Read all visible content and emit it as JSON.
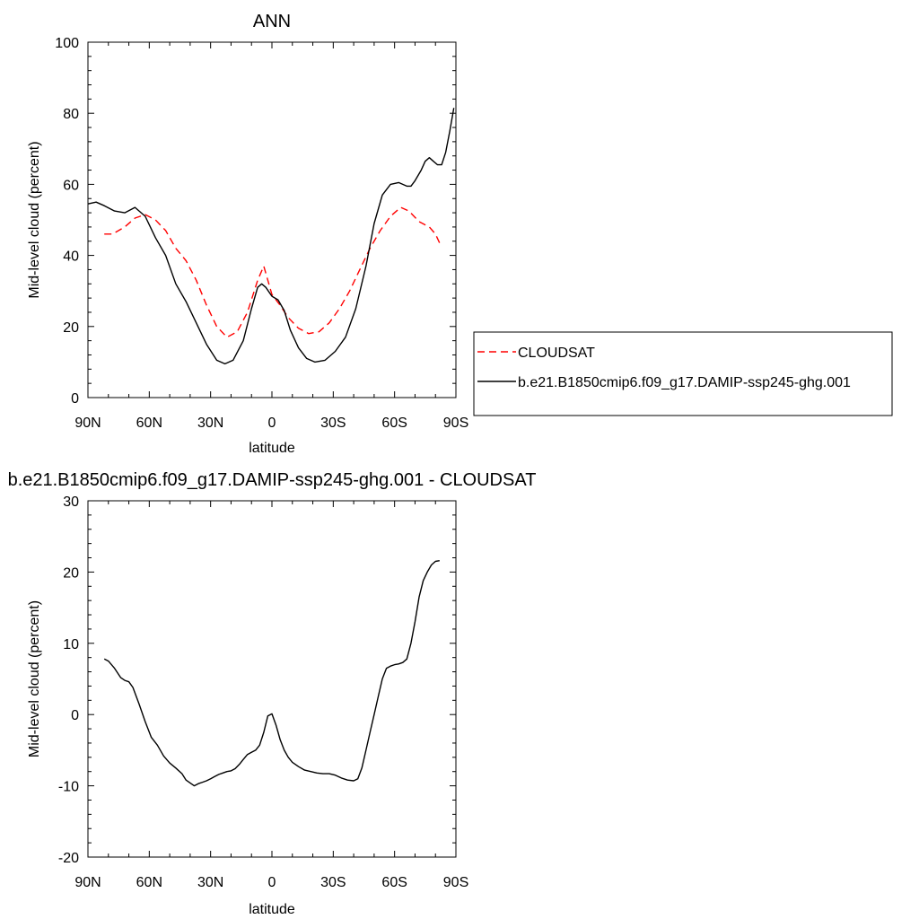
{
  "chart_data": [
    {
      "type": "line",
      "title": "ANN",
      "xlabel": "latitude",
      "ylabel": "Mid-level cloud (percent)",
      "xlim": [
        90,
        -90
      ],
      "ylim": [
        0,
        100
      ],
      "x_tick_values": [
        90,
        60,
        30,
        0,
        -30,
        -60,
        -90
      ],
      "x_tick_labels": [
        "90N",
        "60N",
        "30N",
        "0",
        "30S",
        "60S",
        "90S"
      ],
      "y_tick_values": [
        0,
        20,
        40,
        60,
        80,
        100
      ],
      "y_tick_labels": [
        "0",
        "20",
        "40",
        "60",
        "80",
        "100"
      ],
      "legend": {
        "placement": "right"
      },
      "series": [
        {
          "name": "CLOUDSAT",
          "color": "#ff0000",
          "dash": "dashed",
          "x": [
            82,
            78,
            72,
            67,
            62,
            57,
            52,
            47,
            42,
            37,
            32,
            27,
            22,
            17,
            12,
            7,
            4,
            0,
            -4,
            -8,
            -13,
            -18,
            -23,
            -28,
            -33,
            -38,
            -43,
            -48,
            -53,
            -58,
            -63,
            -67,
            -72,
            -77,
            -80,
            -82
          ],
          "y": [
            46,
            46,
            48,
            50.5,
            51.5,
            50,
            47,
            42,
            38.5,
            33,
            26,
            20,
            17,
            18.5,
            24,
            33,
            37,
            29,
            26,
            22.5,
            19.5,
            18,
            18.5,
            21,
            25,
            30,
            36,
            42,
            47,
            51,
            53.5,
            52.5,
            49.5,
            48,
            46,
            43.5
          ]
        },
        {
          "name": "b.e21.B1850cmip6.f09_g17.DAMIP-ssp245-ghg.001",
          "color": "#000000",
          "dash": "solid",
          "x": [
            90,
            86,
            82,
            77,
            72,
            67,
            62,
            57,
            52,
            47,
            42,
            37,
            32,
            27,
            23,
            19,
            14,
            10,
            7,
            5,
            3,
            0,
            -3,
            -6,
            -9,
            -13,
            -17,
            -21,
            -26,
            -31,
            -36,
            -41,
            -46,
            -50,
            -54,
            -58,
            -62,
            -66,
            -68,
            -70,
            -73,
            -75,
            -77,
            -79,
            -81,
            -83,
            -85,
            -87,
            -89
          ],
          "y": [
            54.5,
            55,
            54,
            52.5,
            52,
            53.5,
            51,
            45,
            40,
            32,
            27,
            21,
            15,
            10.5,
            9.5,
            10.5,
            16,
            25,
            31,
            32,
            31,
            28.5,
            27.5,
            24.5,
            19,
            14,
            11,
            10,
            10.5,
            13,
            17,
            25,
            37,
            49,
            57,
            60,
            60.5,
            59.5,
            59.5,
            61,
            64,
            66.5,
            67.5,
            66.5,
            65.5,
            65.5,
            69,
            75,
            81.5
          ]
        }
      ]
    },
    {
      "type": "line",
      "title": "b.e21.B1850cmip6.f09_g17.DAMIP-ssp245-ghg.001 - CLOUDSAT",
      "xlabel": "latitude",
      "ylabel": "Mid-level cloud (percent)",
      "xlim": [
        90,
        -90
      ],
      "ylim": [
        -20,
        30
      ],
      "x_tick_values": [
        90,
        60,
        30,
        0,
        -30,
        -60,
        -90
      ],
      "x_tick_labels": [
        "90N",
        "60N",
        "30N",
        "0",
        "30S",
        "60S",
        "90S"
      ],
      "y_tick_values": [
        -20,
        -10,
        0,
        10,
        20,
        30
      ],
      "y_tick_labels": [
        "-20",
        "-10",
        "0",
        "10",
        "20",
        "30"
      ],
      "series": [
        {
          "color": "#000000",
          "dash": "solid",
          "x": [
            82,
            80,
            77,
            74,
            72,
            70,
            68,
            65,
            62,
            59,
            56,
            53,
            50,
            47,
            44,
            42,
            40,
            38,
            36,
            34,
            32,
            30,
            28,
            26,
            24,
            22,
            20,
            18,
            16,
            14,
            12,
            10,
            8,
            6,
            4,
            2,
            0,
            -2,
            -4,
            -6,
            -8,
            -10,
            -13,
            -16,
            -19,
            -22,
            -25,
            -28,
            -31,
            -34,
            -37,
            -40,
            -42,
            -44,
            -46,
            -48,
            -50,
            -52,
            -54,
            -56,
            -58,
            -60,
            -62,
            -64,
            -66,
            -68,
            -70,
            -72,
            -74,
            -76,
            -78,
            -80,
            -82
          ],
          "y": [
            7.8,
            7.5,
            6.5,
            5.2,
            4.8,
            4.6,
            3.8,
            1.5,
            -1.0,
            -3.2,
            -4.3,
            -5.8,
            -6.8,
            -7.5,
            -8.3,
            -9.2,
            -9.6,
            -10.0,
            -9.7,
            -9.5,
            -9.3,
            -9.0,
            -8.7,
            -8.4,
            -8.2,
            -8.0,
            -7.9,
            -7.6,
            -7.0,
            -6.3,
            -5.6,
            -5.3,
            -5.0,
            -4.3,
            -2.5,
            -0.2,
            0.1,
            -1.5,
            -3.5,
            -5.0,
            -6.0,
            -6.7,
            -7.3,
            -7.8,
            -8.0,
            -8.2,
            -8.3,
            -8.3,
            -8.5,
            -8.9,
            -9.2,
            -9.3,
            -9.0,
            -7.5,
            -5.0,
            -2.5,
            0.0,
            2.5,
            5.0,
            6.5,
            6.8,
            7.0,
            7.1,
            7.3,
            7.8,
            10.0,
            13.0,
            16.5,
            18.8,
            20.0,
            21.0,
            21.5,
            21.6
          ]
        }
      ]
    }
  ]
}
